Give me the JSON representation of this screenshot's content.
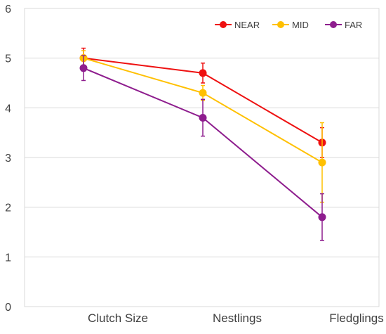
{
  "chart_data": {
    "type": "line",
    "categories": [
      "Clutch Size",
      "Nestlings",
      "Fledglings"
    ],
    "ylim": [
      0,
      6
    ],
    "yticks": [
      "0",
      "1",
      "2",
      "3",
      "4",
      "5",
      "6"
    ],
    "grid": true,
    "legend_position": "top-right",
    "series": [
      {
        "name": "NEAR",
        "color": "#ee1111",
        "values": [
          5.0,
          4.7,
          3.3
        ],
        "error": [
          0.2,
          0.2,
          0.3
        ]
      },
      {
        "name": "MID",
        "color": "#ffc000",
        "values": [
          5.0,
          4.3,
          2.9
        ],
        "error": [
          0.15,
          0.15,
          0.8
        ]
      },
      {
        "name": "FAR",
        "color": "#8e1d8e",
        "values": [
          4.8,
          3.8,
          1.8
        ],
        "error": [
          0.25,
          0.37,
          0.47
        ]
      }
    ]
  }
}
